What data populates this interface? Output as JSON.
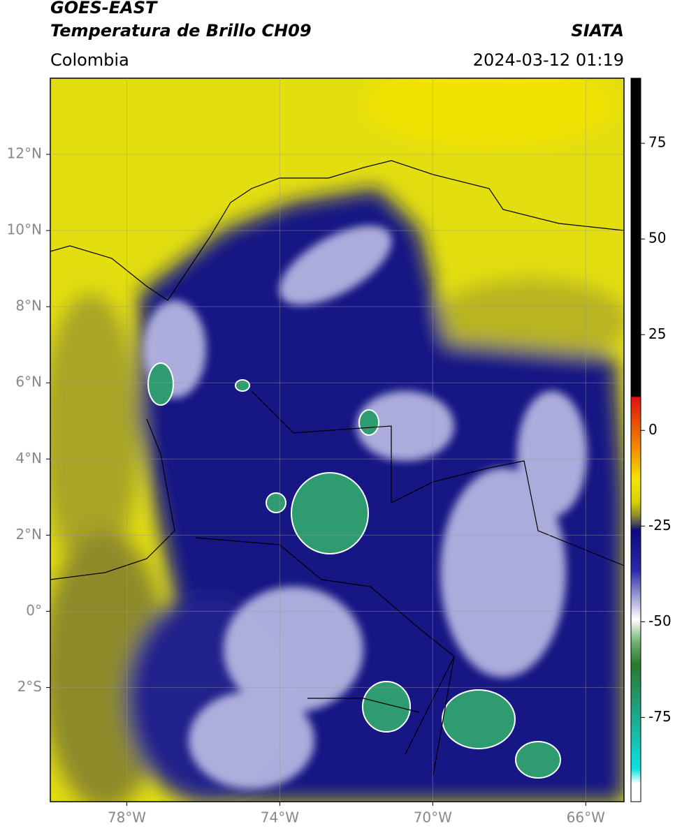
{
  "header": {
    "satellite": "GOES-EAST",
    "product": "Temperatura de Brillo CH09",
    "source": "SIATA",
    "region": "Colombia",
    "datetime": "2024-03-12 01:19"
  },
  "map": {
    "xlim": [
      -80,
      -65
    ],
    "ylim": [
      -5,
      14
    ],
    "xticks": [
      {
        "value": -78,
        "label": "78°W"
      },
      {
        "value": -74,
        "label": "74°W"
      },
      {
        "value": -70,
        "label": "70°W"
      },
      {
        "value": -66,
        "label": "66°W"
      }
    ],
    "yticks": [
      {
        "value": 12,
        "label": "12°N"
      },
      {
        "value": 10,
        "label": "10°N"
      },
      {
        "value": 8,
        "label": "8°N"
      },
      {
        "value": 6,
        "label": "6°N"
      },
      {
        "value": 4,
        "label": "4°N"
      },
      {
        "value": 2,
        "label": "2°N"
      },
      {
        "value": 0,
        "label": "0°"
      },
      {
        "value": -2,
        "label": "2°S"
      }
    ],
    "grid": true
  },
  "colorbar": {
    "lim": [
      -97,
      92
    ],
    "ticks": [
      75,
      50,
      25,
      0,
      -25,
      -50,
      -75
    ]
  }
}
